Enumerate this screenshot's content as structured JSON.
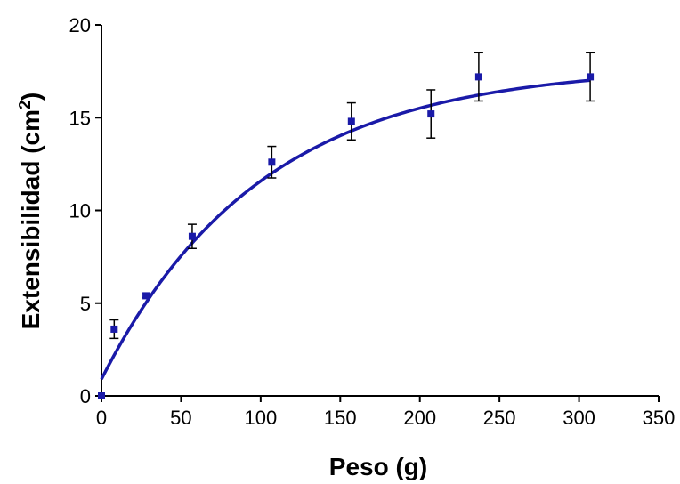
{
  "chart_data": {
    "type": "scatter",
    "title": "",
    "xlabel": "Peso (g)",
    "ylabel_main": "Extensibilidad (cm",
    "ylabel_sup": "2",
    "ylabel_end": ")",
    "xlim": [
      0,
      350
    ],
    "ylim": [
      0,
      20
    ],
    "xticks": [
      0,
      50,
      100,
      150,
      200,
      250,
      300,
      350
    ],
    "yticks": [
      0,
      5,
      10,
      15,
      20
    ],
    "grid": false,
    "legend": "none",
    "marker_color": "#1a1aa8",
    "line_color": "#1a1aa8",
    "points": [
      {
        "x": 0,
        "y": 0,
        "err": 0
      },
      {
        "x": 8,
        "y": 3.6,
        "err": 0.5
      },
      {
        "x": 28,
        "y": 5.4,
        "err": 0.1
      },
      {
        "x": 57,
        "y": 8.6,
        "err": 0.65
      },
      {
        "x": 107,
        "y": 12.6,
        "err": 0.85
      },
      {
        "x": 157,
        "y": 14.8,
        "err": 1.0
      },
      {
        "x": 207,
        "y": 15.2,
        "err": 1.3
      },
      {
        "x": 237,
        "y": 17.2,
        "err": 1.3
      },
      {
        "x": 307,
        "y": 17.2,
        "err": 1.3
      }
    ],
    "fit": {
      "model": "exponential_rise",
      "y0": 0.9,
      "plateau": 17.8,
      "k": 0.01
    }
  }
}
